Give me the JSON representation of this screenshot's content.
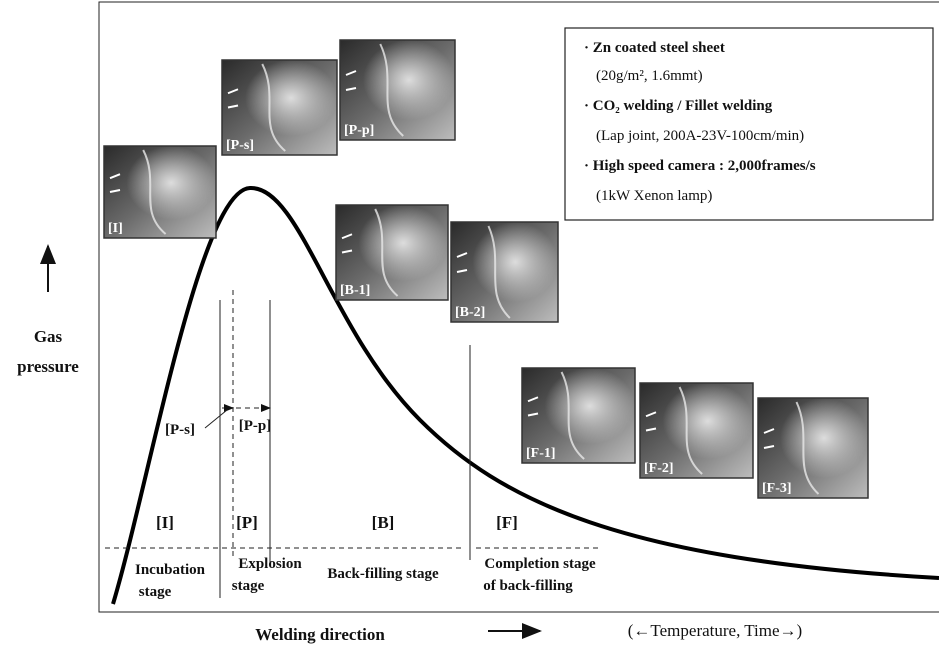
{
  "y_axis": {
    "line1": "Gas",
    "line2": "pressure"
  },
  "x_axis": {
    "label": "Welding direction",
    "note": "(←Temperature, Time→)"
  },
  "info_box": {
    "items": [
      {
        "heading": "· Zn coated steel sheet",
        "detail": "(20g/m², 1.6mmt)"
      },
      {
        "heading": "· CO₂ welding / Fillet welding",
        "detail": "(Lap joint, 200A-23V-100cm/min)"
      },
      {
        "heading": "· High speed camera : 2,000frames/s",
        "detail": "(1kW Xenon lamp)"
      }
    ]
  },
  "stages": [
    {
      "label": "[I]",
      "name": [
        "Incubation",
        "stage"
      ]
    },
    {
      "label": "[P]",
      "name": [
        "Explosion",
        "stage"
      ]
    },
    {
      "label": "[B]",
      "name": [
        "Back-filling stage"
      ]
    },
    {
      "label": "[F]",
      "name": [
        "Completion stage",
        "of back-filling"
      ]
    }
  ],
  "sub_stages": [
    "[P-s]",
    "[P-p]"
  ],
  "photos": [
    "[I]",
    "[P-s]",
    "[P-p]",
    "[B-1]",
    "[B-2]",
    "[F-1]",
    "[F-2]",
    "[F-3]"
  ]
}
